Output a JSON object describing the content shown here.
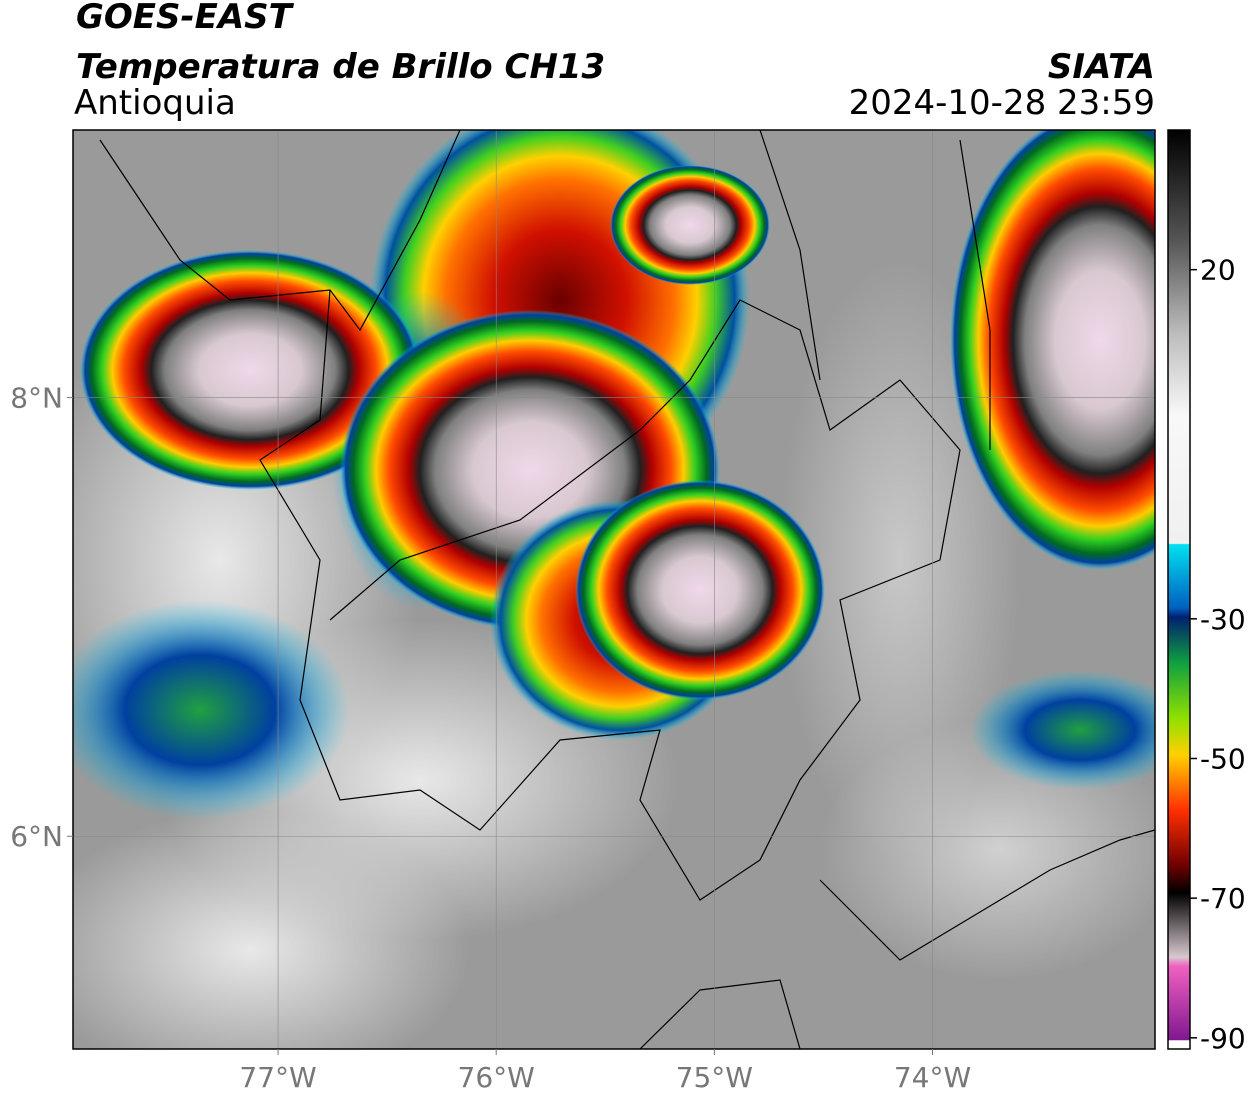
{
  "chart_data": {
    "type": "map",
    "title": "GOES-EAST",
    "subtitle": "Temperatura de Brillo CH13",
    "region": "Antioquia",
    "source": "SIATA",
    "timestamp": "2024-10-28 23:59",
    "xlim": [
      -77.94,
      -72.98
    ],
    "ylim": [
      5.03,
      9.22
    ],
    "xticks": [
      {
        "value": -77,
        "label": "77°W"
      },
      {
        "value": -76,
        "label": "76°W"
      },
      {
        "value": -75,
        "label": "75°W"
      },
      {
        "value": -74,
        "label": "74°W"
      }
    ],
    "yticks": [
      {
        "value": 6,
        "label": "6°N"
      },
      {
        "value": 8,
        "label": "8°N"
      }
    ],
    "grid": true,
    "colorbar_lim": [
      -91.6,
      40
    ],
    "colorbar_ticks": [
      20,
      -30,
      -50,
      -70,
      -90
    ]
  }
}
